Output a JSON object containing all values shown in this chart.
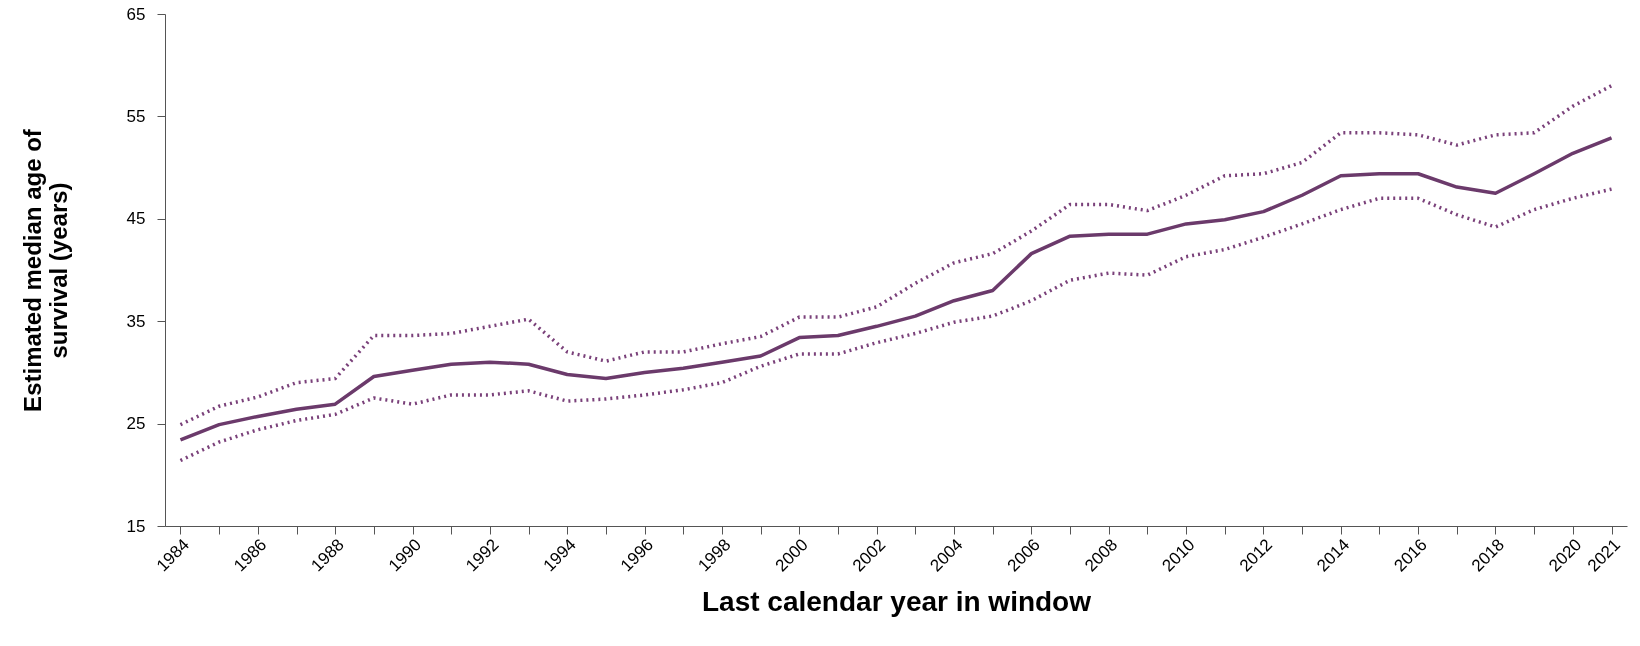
{
  "chart_data": {
    "type": "line",
    "xlabel": "Last calendar year in window",
    "ylabel": "Estimated median age of survival (years)",
    "categories": [
      "1984",
      null,
      "1986",
      null,
      "1988",
      null,
      "1990",
      null,
      "1992",
      null,
      "1994",
      null,
      "1996",
      null,
      "1998",
      null,
      "2000",
      null,
      "2002",
      null,
      "2004",
      null,
      "2006",
      null,
      "2008",
      null,
      "2010",
      null,
      "2012",
      null,
      "2014",
      null,
      "2016",
      null,
      "2018",
      null,
      "2020",
      "2021"
    ],
    "ylim": [
      15,
      65
    ],
    "yticks": [
      15,
      25,
      35,
      45,
      55,
      65
    ],
    "grid": false,
    "series": [
      {
        "color": "#6b3a6b",
        "line_style": "solid",
        "values": [
          23.4,
          24.9,
          25.7,
          26.4,
          26.9,
          29.6,
          30.2,
          30.8,
          31.0,
          30.8,
          29.8,
          29.4,
          30.0,
          30.4,
          31.0,
          31.6,
          33.4,
          33.6,
          34.5,
          35.5,
          37.0,
          38.0,
          41.6,
          43.3,
          43.5,
          43.5,
          44.5,
          44.9,
          45.7,
          47.3,
          49.2,
          49.4,
          49.4,
          48.1,
          47.5,
          49.4,
          51.4,
          52.9
        ]
      },
      {
        "color": "#7a417a",
        "line_style": "dotted",
        "values": [
          24.9,
          26.7,
          27.6,
          29.0,
          29.4,
          33.6,
          33.6,
          33.8,
          34.5,
          35.2,
          32.0,
          31.1,
          32.0,
          32.0,
          32.8,
          33.5,
          35.4,
          35.4,
          36.4,
          38.7,
          40.7,
          41.6,
          43.8,
          46.4,
          46.4,
          45.8,
          47.3,
          49.2,
          49.4,
          50.5,
          53.4,
          53.4,
          53.2,
          52.2,
          53.2,
          53.4,
          56.0,
          58.0
        ]
      },
      {
        "color": "#7a417a",
        "line_style": "dotted",
        "values": [
          21.4,
          23.2,
          24.4,
          25.3,
          25.9,
          27.5,
          26.9,
          27.8,
          27.8,
          28.2,
          27.2,
          27.4,
          27.8,
          28.3,
          29.0,
          30.6,
          31.8,
          31.8,
          32.9,
          33.8,
          34.9,
          35.5,
          37.0,
          39.0,
          39.7,
          39.5,
          41.3,
          42.0,
          43.2,
          44.5,
          45.9,
          47.0,
          47.0,
          45.4,
          44.2,
          45.9,
          47.0,
          47.9
        ]
      }
    ]
  }
}
